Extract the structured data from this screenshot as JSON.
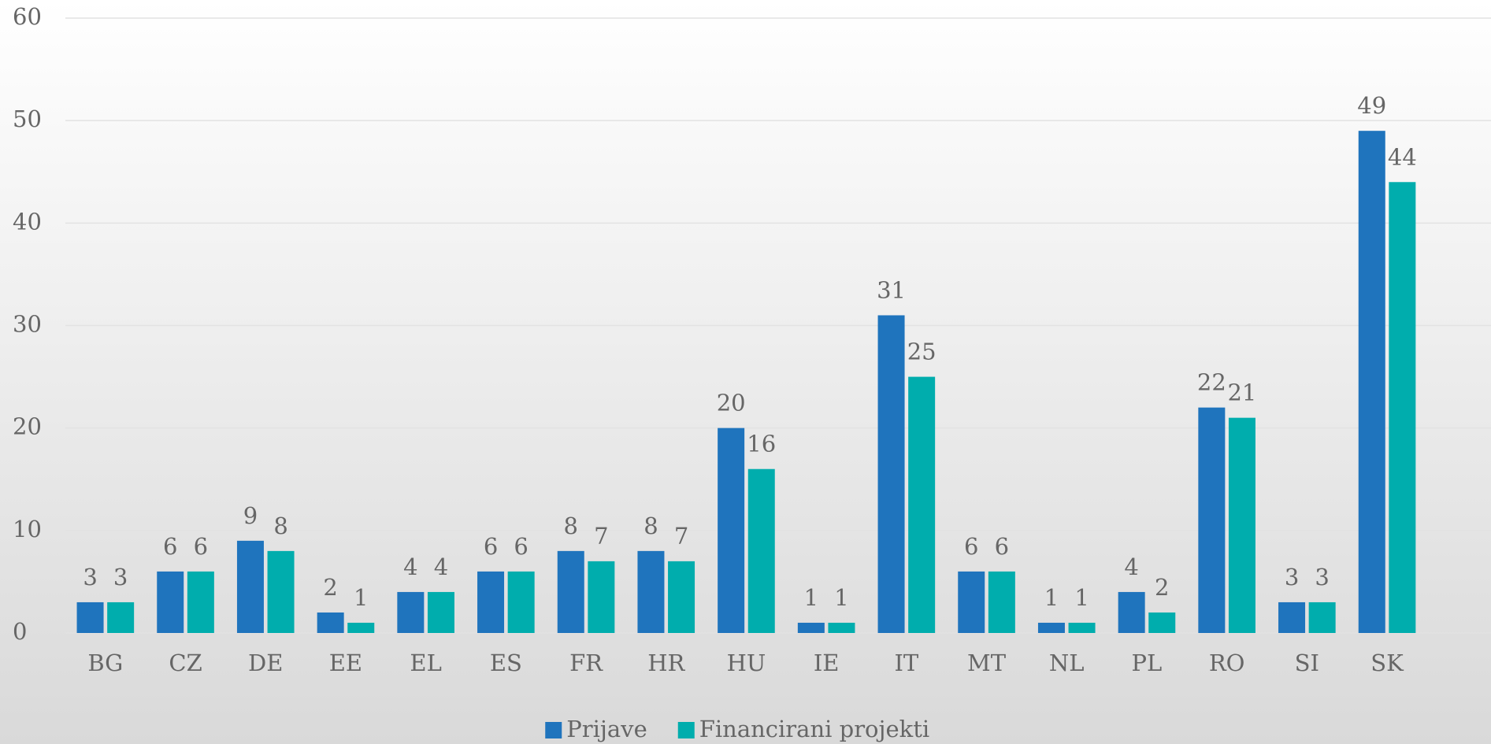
{
  "chart_data": {
    "type": "bar",
    "categories": [
      "BG",
      "CZ",
      "DE",
      "EE",
      "EL",
      "ES",
      "FR",
      "HR",
      "HU",
      "IE",
      "IT",
      "MT",
      "NL",
      "PL",
      "RO",
      "SI",
      "SK"
    ],
    "series": [
      {
        "name": "Prijave",
        "color": "#1f74bd",
        "values": [
          3,
          6,
          9,
          2,
          4,
          6,
          8,
          8,
          20,
          1,
          31,
          6,
          1,
          4,
          22,
          3,
          49
        ]
      },
      {
        "name": "Financirani projekti",
        "color": "#00adad",
        "values": [
          3,
          6,
          8,
          1,
          4,
          6,
          7,
          7,
          16,
          1,
          25,
          6,
          1,
          2,
          21,
          3,
          44
        ]
      }
    ],
    "ylim": [
      0,
      60
    ],
    "yticks": [
      0,
      10,
      20,
      30,
      40,
      50,
      60
    ],
    "grid": true,
    "legend": "bottom"
  }
}
